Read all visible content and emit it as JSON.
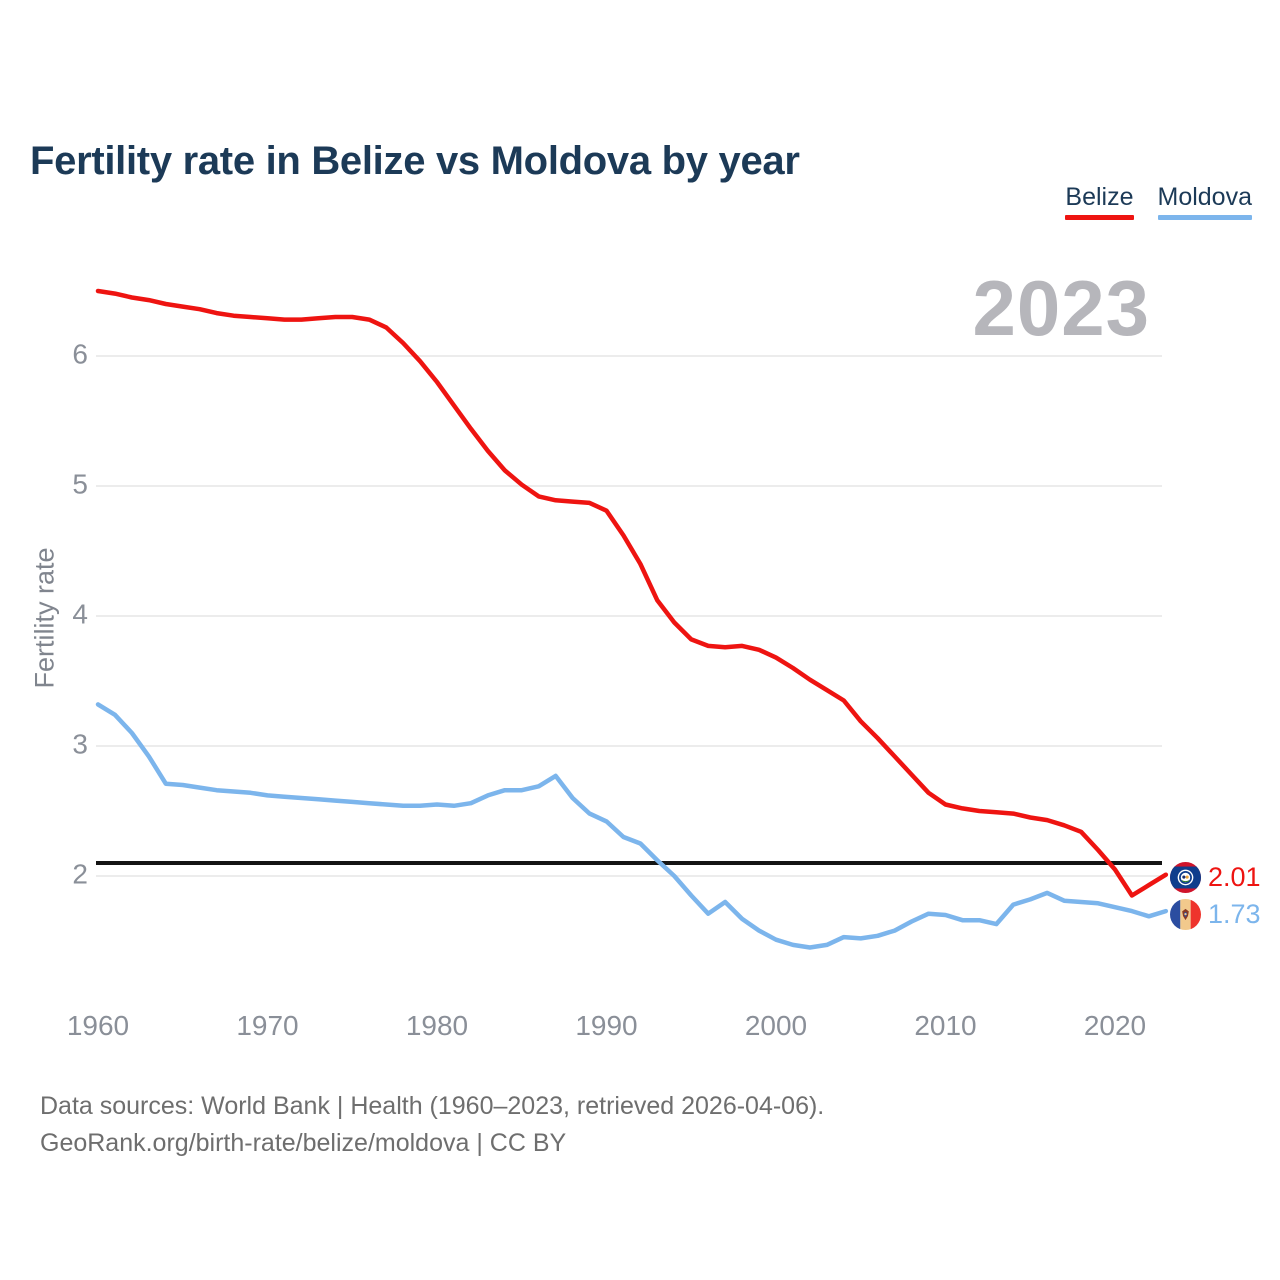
{
  "title": "Fertility rate in Belize vs Moldova by year",
  "watermark": "2023",
  "legend": {
    "items": [
      {
        "label": "Belize",
        "color": "#ee1411"
      },
      {
        "label": "Moldova",
        "color": "#7cb5ec"
      }
    ]
  },
  "y_axis": {
    "title": "Fertility rate",
    "ticks": [
      2,
      3,
      4,
      5,
      6
    ]
  },
  "x_axis": {
    "ticks": [
      1960,
      1970,
      1980,
      1990,
      2000,
      2010,
      2020
    ]
  },
  "end_labels": [
    {
      "series": "Belize",
      "value": "2.01",
      "color": "#ee1411",
      "flag": "belize-flag-icon"
    },
    {
      "series": "Moldova",
      "value": "1.73",
      "color": "#7cb5ec",
      "flag": "moldova-flag-icon"
    }
  ],
  "footer": {
    "line1": "Data sources: World Bank | Health (1960–2023, retrieved 2026-04-06).",
    "line2": "GeoRank.org/birth-rate/belize/moldova | CC BY"
  },
  "colors": {
    "title_text": "#1c3a57",
    "axis_text": "#8a8f98",
    "gridline": "#ececec",
    "replacement_line": "#141414",
    "belize": "#ee1411",
    "moldova": "#7cb5ec",
    "watermark": "#b6b6bb",
    "footer_text": "#6e6e6e"
  },
  "chart_data": {
    "type": "line",
    "title": "Fertility rate in Belize vs Moldova by year",
    "xlabel": "",
    "ylabel": "Fertility rate",
    "xlim": [
      1960,
      2023
    ],
    "ylim": [
      1.3,
      6.6
    ],
    "grid": "horizontal",
    "legend_position": "top-right",
    "x": [
      1960,
      1961,
      1962,
      1963,
      1964,
      1965,
      1966,
      1967,
      1968,
      1969,
      1970,
      1971,
      1972,
      1973,
      1974,
      1975,
      1976,
      1977,
      1978,
      1979,
      1980,
      1981,
      1982,
      1983,
      1984,
      1985,
      1986,
      1987,
      1988,
      1989,
      1990,
      1991,
      1992,
      1993,
      1994,
      1995,
      1996,
      1997,
      1998,
      1999,
      2000,
      2001,
      2002,
      2003,
      2004,
      2005,
      2006,
      2007,
      2008,
      2009,
      2010,
      2011,
      2012,
      2013,
      2014,
      2015,
      2016,
      2017,
      2018,
      2019,
      2020,
      2021,
      2022,
      2023
    ],
    "series": [
      {
        "name": "Belize",
        "color": "#ee1411",
        "values": [
          6.5,
          6.48,
          6.45,
          6.43,
          6.4,
          6.38,
          6.36,
          6.33,
          6.31,
          6.3,
          6.29,
          6.28,
          6.28,
          6.29,
          6.3,
          6.3,
          6.28,
          6.22,
          6.1,
          5.96,
          5.8,
          5.62,
          5.44,
          5.27,
          5.12,
          5.01,
          4.92,
          4.89,
          4.88,
          4.87,
          4.81,
          4.62,
          4.4,
          4.12,
          3.95,
          3.82,
          3.77,
          3.76,
          3.77,
          3.74,
          3.68,
          3.6,
          3.51,
          3.43,
          3.35,
          3.19,
          3.06,
          2.92,
          2.78,
          2.64,
          2.55,
          2.52,
          2.5,
          2.49,
          2.48,
          2.45,
          2.43,
          2.39,
          2.34,
          2.2,
          2.05,
          1.85,
          1.93,
          2.01
        ]
      },
      {
        "name": "Moldova",
        "color": "#7cb5ec",
        "values": [
          3.32,
          3.24,
          3.1,
          2.92,
          2.71,
          2.7,
          2.68,
          2.66,
          2.65,
          2.64,
          2.62,
          2.61,
          2.6,
          2.59,
          2.58,
          2.57,
          2.56,
          2.55,
          2.54,
          2.54,
          2.55,
          2.54,
          2.56,
          2.62,
          2.66,
          2.66,
          2.69,
          2.77,
          2.6,
          2.48,
          2.42,
          2.3,
          2.25,
          2.12,
          2.0,
          1.85,
          1.71,
          1.8,
          1.67,
          1.58,
          1.51,
          1.47,
          1.45,
          1.47,
          1.53,
          1.52,
          1.54,
          1.58,
          1.65,
          1.71,
          1.7,
          1.66,
          1.66,
          1.63,
          1.78,
          1.82,
          1.87,
          1.81,
          1.8,
          1.79,
          1.76,
          1.73,
          1.69,
          1.73
        ]
      }
    ],
    "annotations": {
      "replacement_fertility_line": 2.1
    }
  }
}
